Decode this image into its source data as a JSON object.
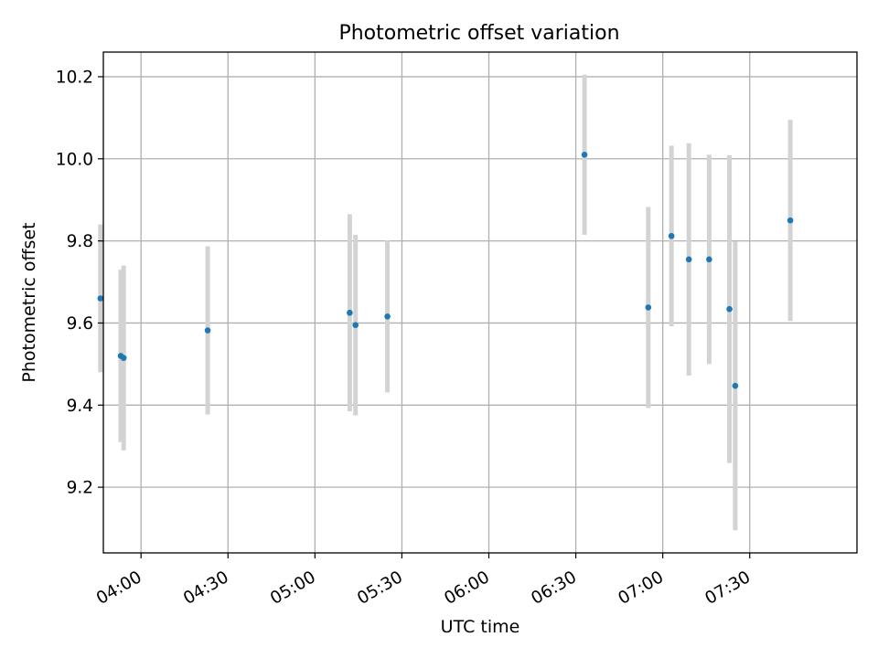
{
  "chart_data": {
    "type": "scatter",
    "title": "Photometric offset variation",
    "xlabel": "UTC time",
    "ylabel": "Photometric offset",
    "x_ticks": [
      "04:00",
      "04:30",
      "05:00",
      "05:30",
      "06:00",
      "06:30",
      "07:00",
      "07:30"
    ],
    "y_ticks": [
      "9.2",
      "9.4",
      "9.6",
      "9.8",
      "10.0",
      "10.2"
    ],
    "xlim": [
      "03:47",
      "08:07"
    ],
    "ylim": [
      9.04,
      10.26
    ],
    "grid": true,
    "point_color": "#1f77b4",
    "errorbar_color": "#d3d3d3",
    "points": [
      {
        "x": "03:46",
        "y": 9.66,
        "err": 0.18
      },
      {
        "x": "03:53",
        "y": 9.52,
        "err": 0.21
      },
      {
        "x": "03:54",
        "y": 9.515,
        "err": 0.225
      },
      {
        "x": "04:23",
        "y": 9.582,
        "err": 0.205
      },
      {
        "x": "05:12",
        "y": 9.625,
        "err": 0.24
      },
      {
        "x": "05:14",
        "y": 9.595,
        "err": 0.22
      },
      {
        "x": "05:25",
        "y": 9.616,
        "err": 0.185
      },
      {
        "x": "06:33",
        "y": 10.01,
        "err": 0.195
      },
      {
        "x": "06:55",
        "y": 9.638,
        "err": 0.245
      },
      {
        "x": "07:03",
        "y": 9.812,
        "err": 0.22
      },
      {
        "x": "07:09",
        "y": 9.755,
        "err": 0.283
      },
      {
        "x": "07:16",
        "y": 9.755,
        "err": 0.255
      },
      {
        "x": "07:23",
        "y": 9.634,
        "err": 0.375
      },
      {
        "x": "07:25",
        "y": 9.447,
        "err": 0.352
      },
      {
        "x": "07:44",
        "y": 9.85,
        "err": 0.245
      }
    ]
  }
}
